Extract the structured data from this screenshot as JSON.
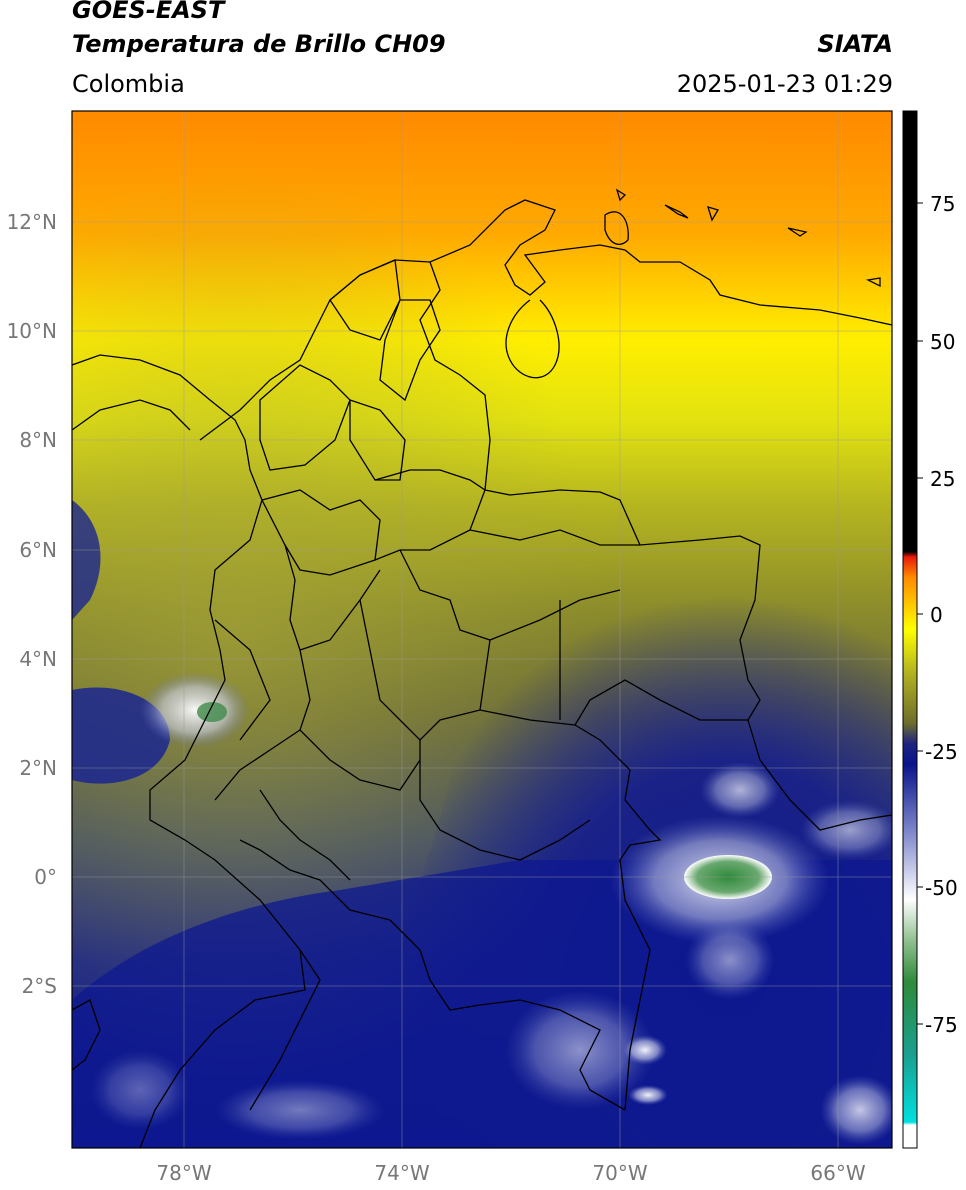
{
  "header": {
    "satellite": "GOES-EAST",
    "product": "Temperatura de Brillo CH09",
    "region": "Colombia",
    "brand": "SIATA",
    "datetime": "2025-01-23 01:29"
  },
  "map": {
    "lat_labels": [
      "12°N",
      "10°N",
      "8°N",
      "6°N",
      "4°N",
      "2°N",
      "0°",
      "2°S"
    ],
    "lon_labels": [
      "78°W",
      "74°W",
      "70°W",
      "66°W"
    ]
  },
  "colorbar": {
    "ticks": [
      "75",
      "50",
      "25",
      "0",
      "-25",
      "-50",
      "-75"
    ],
    "range": [
      -95,
      90
    ],
    "colors": {
      "warm": "#000000",
      "red": "#e81a0a",
      "orange": "#ff8c00",
      "yellow": "#ffff00",
      "olive": "#6e6e2a",
      "navy": "#0a148c",
      "white": "#ffffff",
      "green": "#2e8b3a",
      "cyan": "#00e0e0"
    }
  }
}
